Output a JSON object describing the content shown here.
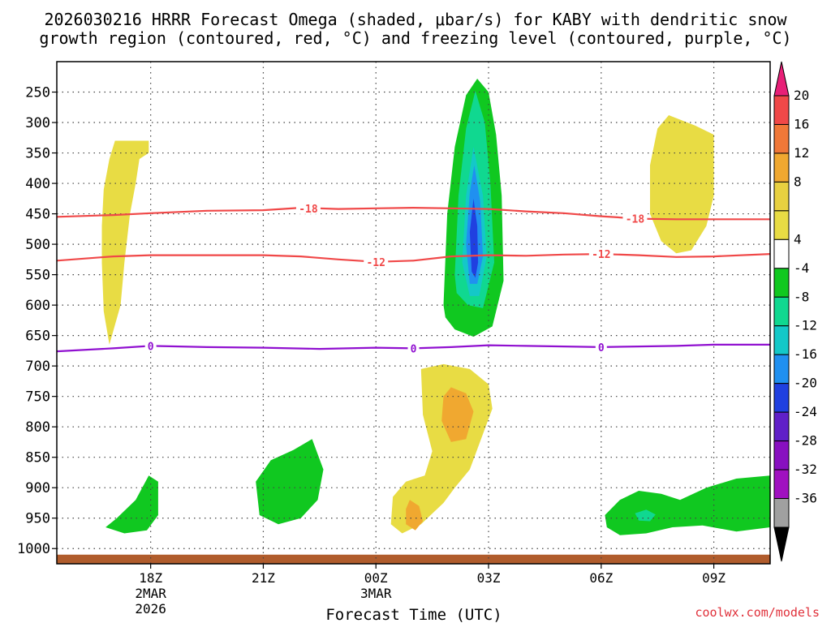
{
  "chart_data": {
    "type": "time-height cross section",
    "title_line1": "2026030216 HRRR Forecast Omega (shaded, μbar/s) for KABY with dendritic snow",
    "title_line2": "growth region (contoured, red, °C) and freezing level (contoured, purple, °C)",
    "xlabel": "Forecast Time (UTC)",
    "credit": "coolwx.com/models",
    "x_range_hours": [
      -2.5,
      16.5
    ],
    "x_ticks": [
      {
        "hour": 0,
        "label": "18Z",
        "sub1": "2MAR",
        "sub2": "2026"
      },
      {
        "hour": 3,
        "label": "21Z",
        "sub1": "",
        "sub2": ""
      },
      {
        "hour": 6,
        "label": "00Z",
        "sub1": "3MAR",
        "sub2": ""
      },
      {
        "hour": 9,
        "label": "03Z",
        "sub1": "",
        "sub2": ""
      },
      {
        "hour": 12,
        "label": "06Z",
        "sub1": "",
        "sub2": ""
      },
      {
        "hour": 15,
        "label": "09Z",
        "sub1": "",
        "sub2": ""
      }
    ],
    "y_axis": "pressure (hPa)",
    "y_range_hpa": [
      1025,
      200
    ],
    "y_ticks": [
      250,
      300,
      350,
      400,
      450,
      500,
      550,
      600,
      650,
      700,
      750,
      800,
      850,
      900,
      950,
      1000
    ],
    "colorbar": {
      "labels": [
        "20",
        "16",
        "12",
        "8",
        "4",
        "-4",
        "-8",
        "-12",
        "-16",
        "-20",
        "-24",
        "-28",
        "-32",
        "-36"
      ],
      "colors": [
        "#e81f77",
        "#f04848",
        "#f07838",
        "#f0a830",
        "#e8d040",
        "#e8dc44",
        "#ffffff",
        "#10c820",
        "#10d890",
        "#14c8c8",
        "#2090f0",
        "#2040e0",
        "#6020c8",
        "#8810c0",
        "#a010c0",
        "#a0a0a0",
        "#000000"
      ]
    },
    "contours": [
      {
        "name": "dendritic-upper",
        "label": "-18",
        "color": "#f04848",
        "points": [
          [
            -2.5,
            455
          ],
          [
            -1,
            452
          ],
          [
            0,
            449
          ],
          [
            1.5,
            445
          ],
          [
            3,
            444
          ],
          [
            4,
            440
          ],
          [
            5,
            442
          ],
          [
            6,
            441
          ],
          [
            7,
            440
          ],
          [
            8,
            441
          ],
          [
            9,
            442
          ],
          [
            10,
            446
          ],
          [
            11,
            449
          ],
          [
            12,
            454
          ],
          [
            13,
            458
          ],
          [
            14,
            459
          ],
          [
            15,
            459
          ],
          [
            16.5,
            459
          ]
        ]
      },
      {
        "name": "dendritic-lower",
        "label": "-12",
        "color": "#f04848",
        "points": [
          [
            -2.5,
            527
          ],
          [
            -1,
            520
          ],
          [
            0,
            518
          ],
          [
            1.5,
            518
          ],
          [
            3,
            518
          ],
          [
            4,
            520
          ],
          [
            5,
            525
          ],
          [
            6,
            529
          ],
          [
            7,
            527
          ],
          [
            8,
            520
          ],
          [
            9,
            518
          ],
          [
            10,
            519
          ],
          [
            11,
            517
          ],
          [
            12,
            516
          ],
          [
            13,
            518
          ],
          [
            14,
            521
          ],
          [
            15,
            520
          ],
          [
            16.5,
            516
          ]
        ]
      },
      {
        "name": "freezing-level",
        "label": "0",
        "color": "#9010d0",
        "points": [
          [
            -2.5,
            676
          ],
          [
            -1,
            671
          ],
          [
            0,
            667
          ],
          [
            1.5,
            669
          ],
          [
            3,
            670
          ],
          [
            4.5,
            672
          ],
          [
            6,
            670
          ],
          [
            7,
            671
          ],
          [
            8,
            669
          ],
          [
            9,
            666
          ],
          [
            10,
            667
          ],
          [
            11,
            668
          ],
          [
            12,
            669
          ],
          [
            13,
            668
          ],
          [
            14,
            667
          ],
          [
            15,
            665
          ],
          [
            16.5,
            665
          ]
        ]
      }
    ],
    "contour_labels": [
      {
        "text": "-18",
        "hour": 4.2,
        "hpa": 441
      },
      {
        "text": "-18",
        "hour": 12.9,
        "hpa": 458
      },
      {
        "text": "-12",
        "hour": 6.0,
        "hpa": 529
      },
      {
        "text": "-12",
        "hour": 12.0,
        "hpa": 516
      },
      {
        "text": "0",
        "hour": 0.0,
        "hpa": 667
      },
      {
        "text": "0",
        "hour": 7.0,
        "hpa": 671
      },
      {
        "text": "0",
        "hour": 12.0,
        "hpa": 669
      }
    ],
    "omega_regions": [
      {
        "name": "upward-core-green",
        "value": "-4",
        "color": "#10c820",
        "points": [
          [
            7.8,
            600
          ],
          [
            7.9,
            450
          ],
          [
            8.1,
            340
          ],
          [
            8.4,
            255
          ],
          [
            8.7,
            228
          ],
          [
            9.0,
            250
          ],
          [
            9.2,
            320
          ],
          [
            9.35,
            420
          ],
          [
            9.4,
            560
          ],
          [
            9.1,
            635
          ],
          [
            8.6,
            652
          ],
          [
            8.1,
            640
          ],
          [
            7.85,
            620
          ]
        ]
      },
      {
        "name": "upward-core-teal",
        "value": "-8",
        "color": "#10d890",
        "points": [
          [
            8.1,
            550
          ],
          [
            8.2,
            420
          ],
          [
            8.4,
            310
          ],
          [
            8.65,
            248
          ],
          [
            8.9,
            300
          ],
          [
            9.05,
            400
          ],
          [
            9.15,
            530
          ],
          [
            8.85,
            605
          ],
          [
            8.45,
            600
          ],
          [
            8.15,
            580
          ]
        ]
      },
      {
        "name": "upward-core-cyan",
        "value": "-12",
        "color": "#14c8c8",
        "points": [
          [
            8.3,
            530
          ],
          [
            8.4,
            420
          ],
          [
            8.6,
            340
          ],
          [
            8.85,
            420
          ],
          [
            8.95,
            520
          ],
          [
            8.75,
            585
          ],
          [
            8.5,
            585
          ]
        ]
      },
      {
        "name": "upward-core-lightblue",
        "value": "-16",
        "color": "#2090f0",
        "points": [
          [
            8.4,
            500
          ],
          [
            8.5,
            415
          ],
          [
            8.62,
            370
          ],
          [
            8.78,
            430
          ],
          [
            8.85,
            520
          ],
          [
            8.7,
            565
          ],
          [
            8.5,
            565
          ]
        ]
      },
      {
        "name": "upward-core-blue",
        "value": "-20",
        "color": "#2040e0",
        "points": [
          [
            8.5,
            480
          ],
          [
            8.6,
            425
          ],
          [
            8.7,
            470
          ],
          [
            8.72,
            530
          ],
          [
            8.65,
            555
          ],
          [
            8.55,
            545
          ]
        ]
      },
      {
        "name": "downward-left-column",
        "value": "4",
        "color": "#e8dc44",
        "points": [
          [
            -1.3,
            470
          ],
          [
            -1.25,
            410
          ],
          [
            -1.1,
            360
          ],
          [
            -0.95,
            330
          ],
          [
            -0.55,
            330
          ],
          [
            -0.05,
            330
          ],
          [
            -0.05,
            350
          ],
          [
            -0.3,
            360
          ],
          [
            -0.4,
            400
          ],
          [
            -0.55,
            450
          ],
          [
            -0.7,
            530
          ],
          [
            -0.8,
            600
          ],
          [
            -1.1,
            665
          ],
          [
            -1.25,
            610
          ],
          [
            -1.3,
            530
          ]
        ]
      },
      {
        "name": "downward-right-column",
        "value": "4",
        "color": "#e8dc44",
        "points": [
          [
            13.3,
            370
          ],
          [
            13.5,
            310
          ],
          [
            13.8,
            288
          ],
          [
            14.5,
            305
          ],
          [
            15.0,
            320
          ],
          [
            15.0,
            420
          ],
          [
            14.8,
            470
          ],
          [
            14.4,
            510
          ],
          [
            14.0,
            515
          ],
          [
            13.6,
            495
          ],
          [
            13.3,
            450
          ]
        ]
      },
      {
        "name": "downward-low-blob",
        "value": "4",
        "color": "#e8dc44",
        "points": [
          [
            7.2,
            705
          ],
          [
            7.8,
            697
          ],
          [
            8.5,
            705
          ],
          [
            9.0,
            730
          ],
          [
            9.1,
            770
          ],
          [
            8.8,
            820
          ],
          [
            8.5,
            870
          ],
          [
            8.1,
            900
          ],
          [
            7.8,
            925
          ],
          [
            7.2,
            960
          ],
          [
            6.7,
            975
          ],
          [
            6.4,
            960
          ],
          [
            6.45,
            915
          ],
          [
            6.8,
            890
          ],
          [
            7.3,
            880
          ],
          [
            7.5,
            840
          ],
          [
            7.25,
            780
          ]
        ]
      },
      {
        "name": "downward-low-orange",
        "value": "8",
        "color": "#f0a830",
        "points": [
          [
            8.0,
            735
          ],
          [
            8.4,
            745
          ],
          [
            8.6,
            775
          ],
          [
            8.4,
            820
          ],
          [
            8.0,
            825
          ],
          [
            7.75,
            790
          ],
          [
            7.8,
            750
          ]
        ]
      },
      {
        "name": "downward-low-orange2",
        "value": "8",
        "color": "#f0a830",
        "points": [
          [
            6.9,
            920
          ],
          [
            7.15,
            930
          ],
          [
            7.25,
            955
          ],
          [
            7.05,
            970
          ],
          [
            6.8,
            960
          ],
          [
            6.8,
            935
          ]
        ]
      },
      {
        "name": "upward-lowlevel-left",
        "value": "-4",
        "color": "#10c820",
        "points": [
          [
            -1.2,
            965
          ],
          [
            -0.9,
            950
          ],
          [
            -0.4,
            920
          ],
          [
            -0.05,
            880
          ],
          [
            0.2,
            890
          ],
          [
            0.2,
            945
          ],
          [
            -0.1,
            970
          ],
          [
            -0.7,
            975
          ]
        ]
      },
      {
        "name": "upward-lowlevel-mid",
        "value": "-4",
        "color": "#10c820",
        "points": [
          [
            2.8,
            890
          ],
          [
            3.2,
            855
          ],
          [
            3.8,
            838
          ],
          [
            4.3,
            820
          ],
          [
            4.6,
            870
          ],
          [
            4.45,
            920
          ],
          [
            4.0,
            950
          ],
          [
            3.4,
            960
          ],
          [
            2.9,
            945
          ]
        ]
      },
      {
        "name": "upward-lowlevel-right",
        "value": "-4",
        "color": "#10c820",
        "points": [
          [
            12.1,
            945
          ],
          [
            12.5,
            920
          ],
          [
            13.0,
            905
          ],
          [
            13.6,
            910
          ],
          [
            14.1,
            920
          ],
          [
            14.8,
            900
          ],
          [
            15.6,
            885
          ],
          [
            16.5,
            880
          ],
          [
            16.5,
            965
          ],
          [
            15.6,
            972
          ],
          [
            14.7,
            962
          ],
          [
            13.9,
            965
          ],
          [
            13.2,
            975
          ],
          [
            12.5,
            978
          ],
          [
            12.15,
            965
          ]
        ]
      },
      {
        "name": "upward-lowlevel-right-teal",
        "value": "-8",
        "color": "#10d890",
        "points": [
          [
            12.9,
            942
          ],
          [
            13.2,
            936
          ],
          [
            13.45,
            944
          ],
          [
            13.3,
            955
          ],
          [
            13.0,
            954
          ]
        ]
      }
    ],
    "surface_band": {
      "name": "ground",
      "color": "#b05c2c",
      "hpa_top": 1010
    }
  }
}
